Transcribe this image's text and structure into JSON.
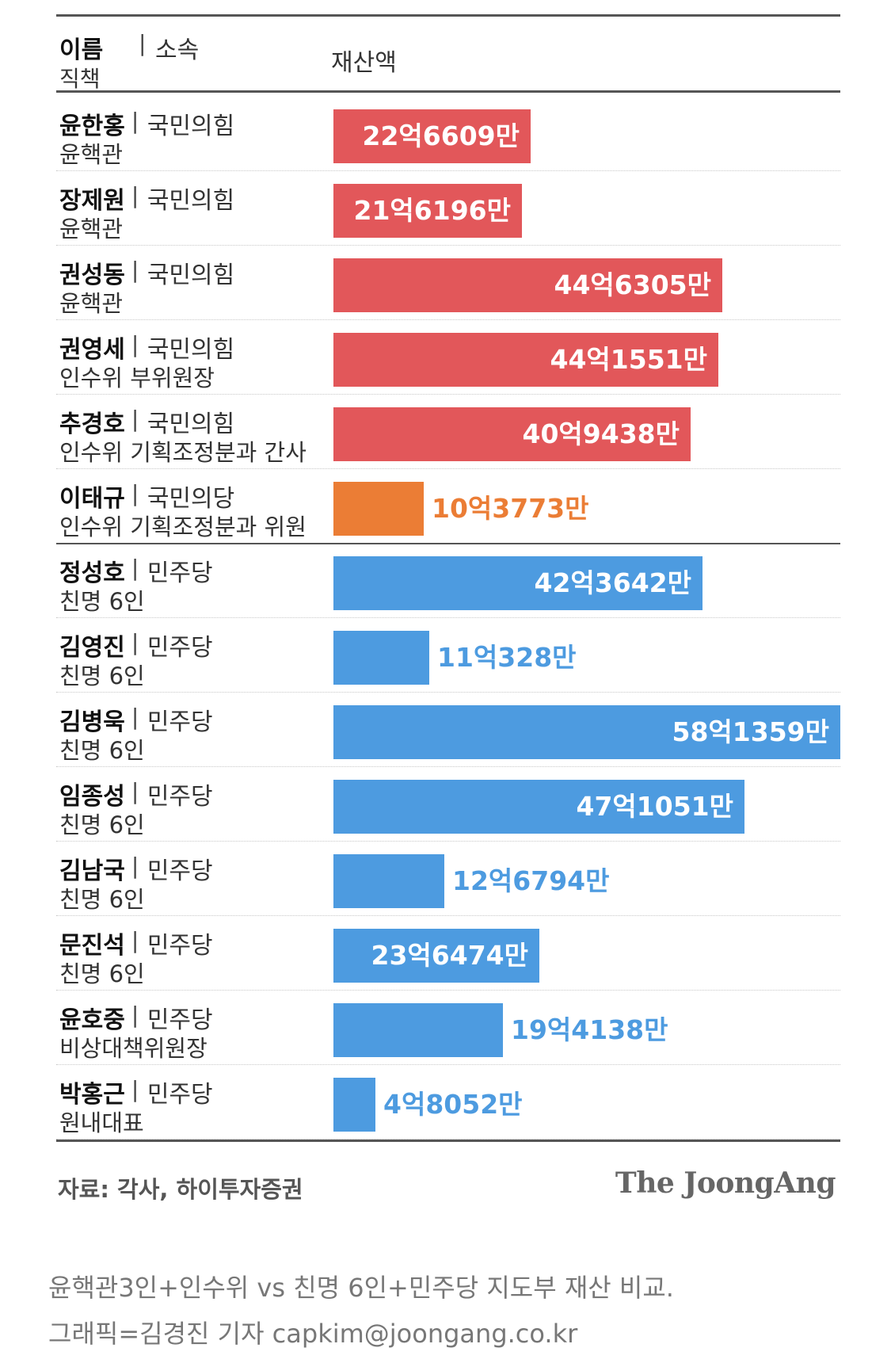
{
  "header": {
    "name_label": "이름",
    "affiliation_label": "소속",
    "title_label": "직책",
    "value_label": "재산액"
  },
  "colors": {
    "ppp": "#e2575a",
    "pp": "#eb7d35",
    "dp": "#4d9be0"
  },
  "chart_data": {
    "type": "bar",
    "orientation": "horizontal",
    "unit": "만원",
    "max": 581359,
    "rows": [
      {
        "name": "윤한홍",
        "affiliation": "국민의힘",
        "title": "윤핵관",
        "value": 226609,
        "label": "22억6609만",
        "color": "ppp",
        "group": 1
      },
      {
        "name": "장제원",
        "affiliation": "국민의힘",
        "title": "윤핵관",
        "value": 216196,
        "label": "21억6196만",
        "color": "ppp",
        "group": 1
      },
      {
        "name": "권성동",
        "affiliation": "국민의힘",
        "title": "윤핵관",
        "value": 446305,
        "label": "44억6305만",
        "color": "ppp",
        "group": 1
      },
      {
        "name": "권영세",
        "affiliation": "국민의힘",
        "title": "인수위 부위원장",
        "value": 441551,
        "label": "44억1551만",
        "color": "ppp",
        "group": 1
      },
      {
        "name": "추경호",
        "affiliation": "국민의힘",
        "title": "인수위 기획조정분과 간사",
        "value": 409438,
        "label": "40억9438만",
        "color": "ppp",
        "group": 1
      },
      {
        "name": "이태규",
        "affiliation": "국민의당",
        "title": "인수위 기획조정분과 위원",
        "value": 103773,
        "label": "10억3773만",
        "color": "pp",
        "group": 1
      },
      {
        "name": "정성호",
        "affiliation": "민주당",
        "title": "친명 6인",
        "value": 423642,
        "label": "42억3642만",
        "color": "dp",
        "group": 2
      },
      {
        "name": "김영진",
        "affiliation": "민주당",
        "title": "친명 6인",
        "value": 110328,
        "label": "11억328만",
        "color": "dp",
        "group": 2
      },
      {
        "name": "김병욱",
        "affiliation": "민주당",
        "title": "친명 6인",
        "value": 581359,
        "label": "58억1359만",
        "color": "dp",
        "group": 2
      },
      {
        "name": "임종성",
        "affiliation": "민주당",
        "title": "친명 6인",
        "value": 471051,
        "label": "47억1051만",
        "color": "dp",
        "group": 2
      },
      {
        "name": "김남국",
        "affiliation": "민주당",
        "title": "친명 6인",
        "value": 126794,
        "label": "12억6794만",
        "color": "dp",
        "group": 2
      },
      {
        "name": "문진석",
        "affiliation": "민주당",
        "title": "친명 6인",
        "value": 236474,
        "label": "23억6474만",
        "color": "dp",
        "group": 2
      },
      {
        "name": "윤호중",
        "affiliation": "민주당",
        "title": "비상대책위원장",
        "value": 194138,
        "label": "19억4138만",
        "color": "dp",
        "group": 2
      },
      {
        "name": "박홍근",
        "affiliation": "민주당",
        "title": "원내대표",
        "value": 48052,
        "label": "4억8052만",
        "color": "dp",
        "group": 2
      }
    ]
  },
  "footer": {
    "source": "자료: 각사, 하이투자증권",
    "brand": "The JoongAng"
  },
  "caption": {
    "line1": "윤핵관3인+인수위 vs 친명 6인+민주당 지도부 재산 비교.",
    "line2": "그래픽=김경진 기자 capkim@joongang.co.kr"
  }
}
